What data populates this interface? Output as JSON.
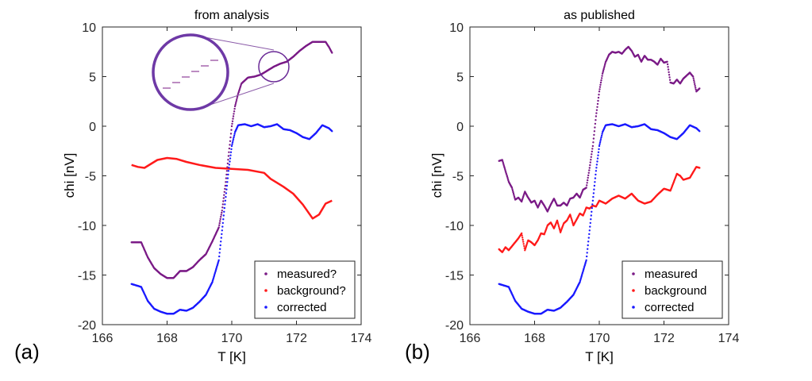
{
  "panel_labels": [
    "(a)",
    "(b)"
  ],
  "chart_data": [
    {
      "type": "scatter",
      "title": "from analysis",
      "xlabel": "T [K]",
      "ylabel": "chi [nV]",
      "xlim": [
        166,
        174
      ],
      "ylim": [
        -20,
        10
      ],
      "xticks": [
        166,
        168,
        170,
        172,
        174
      ],
      "yticks": [
        10,
        5,
        0,
        -5,
        -10,
        -15,
        -20
      ],
      "grid": false,
      "legend_position": "bottom-right",
      "inset_zoom": true,
      "series": [
        {
          "name": "measured?",
          "color": "#7a1a86",
          "style": "dots",
          "points": [
            [
              166.9,
              -11.7
            ],
            [
              167.2,
              -11.7
            ],
            [
              167.4,
              -13.2
            ],
            [
              167.6,
              -14.3
            ],
            [
              167.8,
              -14.9
            ],
            [
              168.0,
              -15.3
            ],
            [
              168.2,
              -15.3
            ],
            [
              168.4,
              -14.6
            ],
            [
              168.6,
              -14.6
            ],
            [
              168.8,
              -14.2
            ],
            [
              169.0,
              -13.5
            ],
            [
              169.2,
              -12.9
            ],
            [
              169.4,
              -11.6
            ],
            [
              169.6,
              -10.2
            ],
            [
              169.7,
              -8.5
            ],
            [
              169.8,
              -6.0
            ],
            [
              169.9,
              -3.0
            ],
            [
              170.0,
              0.0
            ],
            [
              170.1,
              2.0
            ],
            [
              170.2,
              3.3
            ],
            [
              170.3,
              4.3
            ],
            [
              170.5,
              4.9
            ],
            [
              170.7,
              5.0
            ],
            [
              170.9,
              5.2
            ],
            [
              171.1,
              5.6
            ],
            [
              171.3,
              6.0
            ],
            [
              171.5,
              6.3
            ],
            [
              171.7,
              6.5
            ],
            [
              171.9,
              7.0
            ],
            [
              172.1,
              7.6
            ],
            [
              172.3,
              8.1
            ],
            [
              172.5,
              8.5
            ],
            [
              172.7,
              8.5
            ],
            [
              172.9,
              8.5
            ],
            [
              173.0,
              8.0
            ],
            [
              173.1,
              7.4
            ]
          ]
        },
        {
          "name": "background?",
          "color": "#ff1a1a",
          "style": "line",
          "points": [
            [
              166.9,
              -3.9
            ],
            [
              167.1,
              -4.1
            ],
            [
              167.3,
              -4.2
            ],
            [
              167.5,
              -3.8
            ],
            [
              167.7,
              -3.4
            ],
            [
              168.0,
              -3.2
            ],
            [
              168.3,
              -3.3
            ],
            [
              168.6,
              -3.6
            ],
            [
              169.0,
              -3.9
            ],
            [
              169.5,
              -4.2
            ],
            [
              170.0,
              -4.3
            ],
            [
              170.5,
              -4.4
            ],
            [
              171.0,
              -4.7
            ],
            [
              171.2,
              -5.3
            ],
            [
              171.4,
              -5.7
            ],
            [
              171.6,
              -6.1
            ],
            [
              171.9,
              -6.8
            ],
            [
              172.2,
              -7.9
            ],
            [
              172.5,
              -9.3
            ],
            [
              172.7,
              -8.9
            ],
            [
              172.9,
              -7.8
            ],
            [
              173.1,
              -7.5
            ]
          ]
        },
        {
          "name": "corrected",
          "color": "#1a1aff",
          "style": "dots",
          "points": [
            [
              166.9,
              -15.9
            ],
            [
              167.2,
              -16.2
            ],
            [
              167.4,
              -17.6
            ],
            [
              167.6,
              -18.4
            ],
            [
              167.8,
              -18.7
            ],
            [
              168.0,
              -18.9
            ],
            [
              168.2,
              -18.9
            ],
            [
              168.4,
              -18.5
            ],
            [
              168.6,
              -18.6
            ],
            [
              168.8,
              -18.3
            ],
            [
              169.0,
              -17.7
            ],
            [
              169.2,
              -17.0
            ],
            [
              169.4,
              -15.7
            ],
            [
              169.6,
              -13.5
            ],
            [
              169.7,
              -10.5
            ],
            [
              169.8,
              -7.5
            ],
            [
              169.9,
              -4.5
            ],
            [
              170.0,
              -2.0
            ],
            [
              170.1,
              -0.6
            ],
            [
              170.2,
              0.1
            ],
            [
              170.4,
              0.2
            ],
            [
              170.6,
              0.0
            ],
            [
              170.8,
              0.2
            ],
            [
              171.0,
              -0.1
            ],
            [
              171.2,
              0.0
            ],
            [
              171.4,
              0.2
            ],
            [
              171.6,
              -0.3
            ],
            [
              171.8,
              -0.4
            ],
            [
              172.0,
              -0.7
            ],
            [
              172.2,
              -1.1
            ],
            [
              172.4,
              -1.3
            ],
            [
              172.6,
              -0.7
            ],
            [
              172.8,
              0.1
            ],
            [
              173.0,
              -0.2
            ],
            [
              173.1,
              -0.5
            ]
          ]
        }
      ]
    },
    {
      "type": "scatter",
      "title": "as published",
      "xlabel": "T [K]",
      "ylabel": "chi [nV]",
      "xlim": [
        166,
        174
      ],
      "ylim": [
        -20,
        10
      ],
      "xticks": [
        166,
        168,
        170,
        172,
        174
      ],
      "yticks": [
        10,
        5,
        0,
        -5,
        -10,
        -15,
        -20
      ],
      "grid": false,
      "legend_position": "bottom-right",
      "series": [
        {
          "name": "measured",
          "color": "#7a1a86",
          "style": "dots",
          "points": [
            [
              166.9,
              -3.5
            ],
            [
              167.0,
              -3.4
            ],
            [
              167.1,
              -4.5
            ],
            [
              167.2,
              -5.6
            ],
            [
              167.3,
              -6.2
            ],
            [
              167.4,
              -7.4
            ],
            [
              167.5,
              -7.2
            ],
            [
              167.6,
              -7.6
            ],
            [
              167.7,
              -6.6
            ],
            [
              167.8,
              -7.2
            ],
            [
              167.9,
              -7.7
            ],
            [
              168.0,
              -7.5
            ],
            [
              168.1,
              -8.2
            ],
            [
              168.2,
              -7.5
            ],
            [
              168.3,
              -8.0
            ],
            [
              168.4,
              -8.6
            ],
            [
              168.5,
              -7.9
            ],
            [
              168.6,
              -7.3
            ],
            [
              168.7,
              -8.0
            ],
            [
              168.8,
              -8.0
            ],
            [
              168.9,
              -7.7
            ],
            [
              169.0,
              -8.0
            ],
            [
              169.1,
              -7.3
            ],
            [
              169.2,
              -7.2
            ],
            [
              169.3,
              -6.8
            ],
            [
              169.4,
              -7.2
            ],
            [
              169.5,
              -6.4
            ],
            [
              169.6,
              -6.2
            ],
            [
              169.7,
              -4.2
            ],
            [
              169.8,
              -2.0
            ],
            [
              169.9,
              1.0
            ],
            [
              170.0,
              3.5
            ],
            [
              170.1,
              5.3
            ],
            [
              170.2,
              6.5
            ],
            [
              170.3,
              7.2
            ],
            [
              170.4,
              7.5
            ],
            [
              170.5,
              7.4
            ],
            [
              170.6,
              7.5
            ],
            [
              170.7,
              7.3
            ],
            [
              170.8,
              7.7
            ],
            [
              170.9,
              8.0
            ],
            [
              171.0,
              7.6
            ],
            [
              171.1,
              7.0
            ],
            [
              171.2,
              7.2
            ],
            [
              171.3,
              6.5
            ],
            [
              171.4,
              7.1
            ],
            [
              171.5,
              6.7
            ],
            [
              171.6,
              6.7
            ],
            [
              171.7,
              6.5
            ],
            [
              171.8,
              6.2
            ],
            [
              171.9,
              6.8
            ],
            [
              172.0,
              6.4
            ],
            [
              172.1,
              6.5
            ],
            [
              172.2,
              4.4
            ],
            [
              172.3,
              4.3
            ],
            [
              172.4,
              4.7
            ],
            [
              172.5,
              4.3
            ],
            [
              172.6,
              4.8
            ],
            [
              172.7,
              5.1
            ],
            [
              172.8,
              5.4
            ],
            [
              172.9,
              5.0
            ],
            [
              173.0,
              3.5
            ],
            [
              173.1,
              3.8
            ]
          ]
        },
        {
          "name": "background",
          "color": "#ff1a1a",
          "style": "dots",
          "points": [
            [
              166.9,
              -12.4
            ],
            [
              167.0,
              -12.7
            ],
            [
              167.1,
              -12.2
            ],
            [
              167.2,
              -12.5
            ],
            [
              167.3,
              -12.1
            ],
            [
              167.4,
              -11.7
            ],
            [
              167.5,
              -11.3
            ],
            [
              167.6,
              -10.8
            ],
            [
              167.7,
              -12.5
            ],
            [
              167.8,
              -11.5
            ],
            [
              167.9,
              -11.7
            ],
            [
              168.0,
              -12.0
            ],
            [
              168.1,
              -11.5
            ],
            [
              168.2,
              -10.8
            ],
            [
              168.3,
              -10.9
            ],
            [
              168.4,
              -10.0
            ],
            [
              168.5,
              -9.7
            ],
            [
              168.6,
              -10.3
            ],
            [
              168.7,
              -9.5
            ],
            [
              168.8,
              -10.7
            ],
            [
              168.9,
              -9.8
            ],
            [
              169.0,
              -9.5
            ],
            [
              169.1,
              -8.9
            ],
            [
              169.2,
              -10.0
            ],
            [
              169.3,
              -9.4
            ],
            [
              169.4,
              -8.8
            ],
            [
              169.5,
              -9.0
            ],
            [
              169.6,
              -8.2
            ],
            [
              169.7,
              -8.3
            ],
            [
              169.8,
              -8.0
            ],
            [
              169.9,
              -8.1
            ],
            [
              170.0,
              -7.5
            ],
            [
              170.2,
              -7.8
            ],
            [
              170.4,
              -7.3
            ],
            [
              170.6,
              -7.0
            ],
            [
              170.8,
              -7.3
            ],
            [
              171.0,
              -6.8
            ],
            [
              171.2,
              -7.5
            ],
            [
              171.4,
              -7.8
            ],
            [
              171.6,
              -7.6
            ],
            [
              171.8,
              -6.9
            ],
            [
              172.0,
              -6.3
            ],
            [
              172.2,
              -6.5
            ],
            [
              172.4,
              -4.8
            ],
            [
              172.5,
              -5.0
            ],
            [
              172.6,
              -5.4
            ],
            [
              172.8,
              -5.2
            ],
            [
              173.0,
              -4.1
            ],
            [
              173.1,
              -4.2
            ]
          ]
        },
        {
          "name": "corrected",
          "color": "#1a1aff",
          "style": "dots",
          "points": [
            [
              166.9,
              -15.9
            ],
            [
              167.2,
              -16.2
            ],
            [
              167.4,
              -17.6
            ],
            [
              167.6,
              -18.4
            ],
            [
              167.8,
              -18.7
            ],
            [
              168.0,
              -18.9
            ],
            [
              168.2,
              -18.9
            ],
            [
              168.4,
              -18.5
            ],
            [
              168.6,
              -18.6
            ],
            [
              168.8,
              -18.3
            ],
            [
              169.0,
              -17.7
            ],
            [
              169.2,
              -17.0
            ],
            [
              169.4,
              -15.7
            ],
            [
              169.6,
              -13.5
            ],
            [
              169.7,
              -10.5
            ],
            [
              169.8,
              -7.5
            ],
            [
              169.9,
              -4.5
            ],
            [
              170.0,
              -2.0
            ],
            [
              170.1,
              -0.6
            ],
            [
              170.2,
              0.1
            ],
            [
              170.4,
              0.2
            ],
            [
              170.6,
              0.0
            ],
            [
              170.8,
              0.2
            ],
            [
              171.0,
              -0.1
            ],
            [
              171.2,
              0.0
            ],
            [
              171.4,
              0.2
            ],
            [
              171.6,
              -0.3
            ],
            [
              171.8,
              -0.4
            ],
            [
              172.0,
              -0.7
            ],
            [
              172.2,
              -1.1
            ],
            [
              172.4,
              -1.3
            ],
            [
              172.6,
              -0.7
            ],
            [
              172.8,
              0.1
            ],
            [
              173.0,
              -0.2
            ],
            [
              173.1,
              -0.5
            ]
          ]
        }
      ]
    }
  ]
}
